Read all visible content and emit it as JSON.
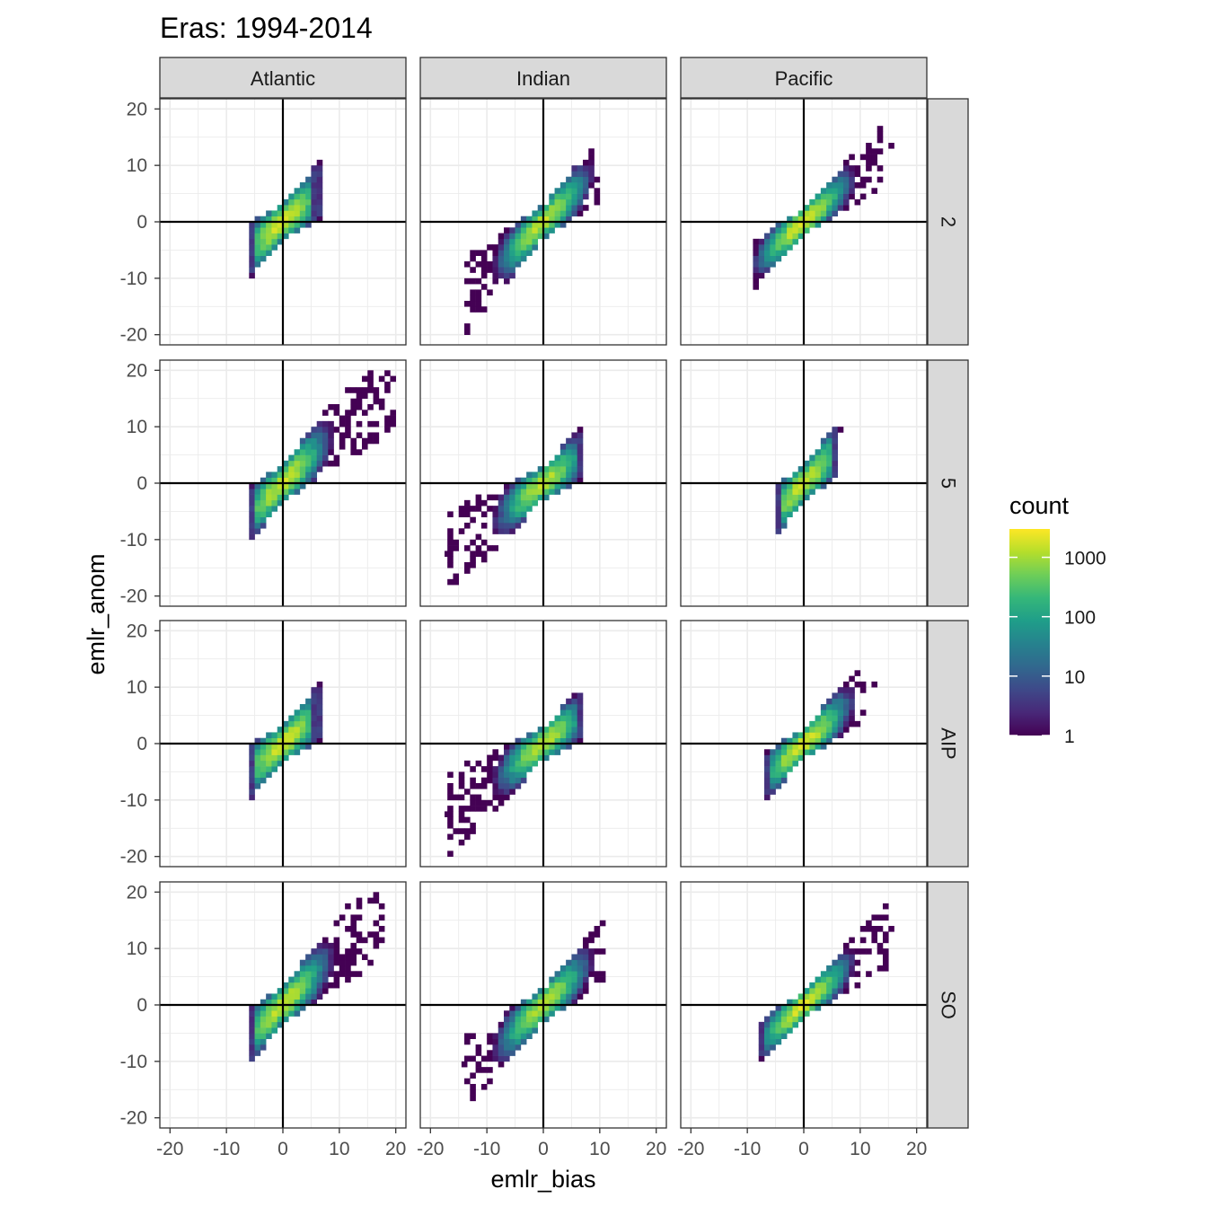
{
  "chart_data": {
    "type": "heatmap",
    "title": "Eras: 1994-2014",
    "xlabel": "emlr_bias",
    "ylabel": "emlr_anom",
    "xlim": [
      -20,
      20
    ],
    "ylim": [
      -20,
      20
    ],
    "x_ticks": [
      -20,
      -10,
      0,
      10,
      20
    ],
    "y_ticks": [
      -20,
      -10,
      0,
      10,
      20
    ],
    "x_tick_labels": [
      "-20",
      "-10",
      "0",
      "10",
      "20"
    ],
    "y_tick_labels": [
      "-20",
      "-10",
      "0",
      "10",
      "20"
    ],
    "reference_lines": {
      "x": 0,
      "y": 0
    },
    "grid": true,
    "column_facets": [
      "Atlantic",
      "Indian",
      "Pacific"
    ],
    "row_facets": [
      "2",
      "5",
      "AIP",
      "SO"
    ],
    "legend": {
      "title": "count",
      "scale": "log10",
      "breaks": [
        1,
        10,
        100,
        1000
      ],
      "labels": [
        "1",
        "10",
        "100",
        "1000"
      ],
      "range": [
        1,
        3000
      ],
      "colormap": "viridis",
      "placement": "right"
    },
    "panels": [
      {
        "column": "Atlantic",
        "row": "2",
        "slope": 0.85,
        "xmin": -6,
        "xmax": 6.5,
        "spread": 1.3,
        "peak": 1800,
        "outliers": []
      },
      {
        "column": "Indian",
        "row": "2",
        "slope": 0.95,
        "xmin": -14,
        "xmax": 10,
        "spread": 1.2,
        "peak": 1400,
        "outliers": [
          [
            -13.5,
            -10.5
          ]
        ]
      },
      {
        "column": "Pacific",
        "row": "2",
        "slope": 0.85,
        "xmin": -9,
        "xmax": 14,
        "spread": 1.0,
        "peak": 2200,
        "outliers": [
          [
            15.5,
            13.5
          ]
        ]
      },
      {
        "column": "Atlantic",
        "row": "5",
        "slope": 0.95,
        "xmin": -6,
        "xmax": 19.5,
        "spread": 1.3,
        "peak": 1600,
        "outliers": []
      },
      {
        "column": "Indian",
        "row": "5",
        "slope": 0.75,
        "xmin": -17,
        "xmax": 7,
        "spread": 1.2,
        "peak": 1300,
        "outliers": [
          [
            -17,
            -12.5
          ]
        ]
      },
      {
        "column": "Pacific",
        "row": "5",
        "slope": 1.0,
        "xmin": -5,
        "xmax": 6,
        "spread": 1.3,
        "peak": 1500,
        "outliers": [
          [
            6.5,
            9.5
          ]
        ]
      },
      {
        "column": "Atlantic",
        "row": "AIP",
        "slope": 0.85,
        "xmin": -6,
        "xmax": 6.5,
        "spread": 1.3,
        "peak": 1800,
        "outliers": []
      },
      {
        "column": "Indian",
        "row": "AIP",
        "slope": 0.75,
        "xmin": -17,
        "xmax": 7,
        "spread": 1.2,
        "peak": 1300,
        "outliers": [
          [
            -17,
            -12.5
          ]
        ]
      },
      {
        "column": "Pacific",
        "row": "AIP",
        "slope": 0.85,
        "xmin": -7,
        "xmax": 11,
        "spread": 1.1,
        "peak": 2000,
        "outliers": [
          [
            12.5,
            10.5
          ]
        ]
      },
      {
        "column": "Atlantic",
        "row": "SO",
        "slope": 0.95,
        "xmin": -6,
        "xmax": 18,
        "spread": 1.3,
        "peak": 1600,
        "outliers": []
      },
      {
        "column": "Indian",
        "row": "SO",
        "slope": 0.9,
        "xmin": -14,
        "xmax": 11,
        "spread": 1.2,
        "peak": 1400,
        "outliers": [
          [
            -14,
            -10.5
          ]
        ]
      },
      {
        "column": "Pacific",
        "row": "SO",
        "slope": 0.85,
        "xmin": -8,
        "xmax": 15,
        "spread": 1.0,
        "peak": 2100,
        "outliers": [
          [
            15.5,
            13.5
          ]
        ]
      }
    ]
  }
}
